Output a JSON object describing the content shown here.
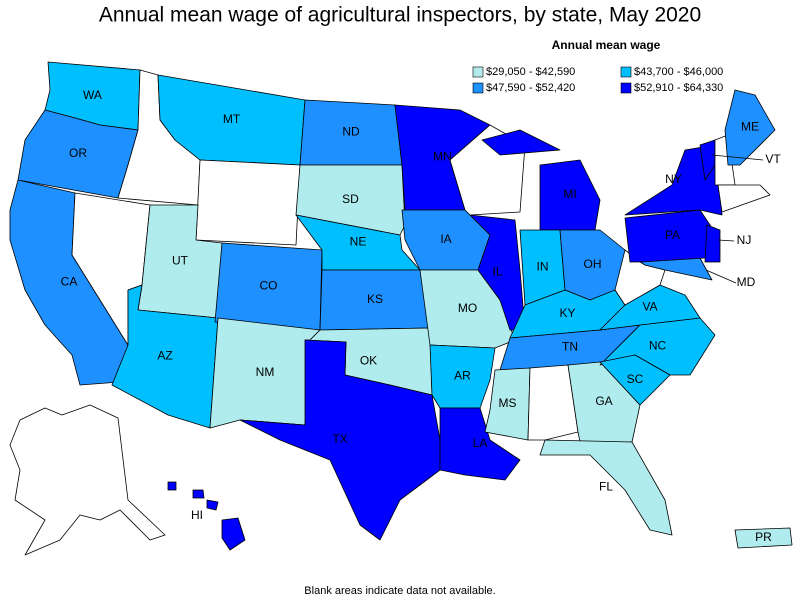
{
  "title": "Annual mean wage of agricultural inspectors, by state, May 2020",
  "legend": {
    "title": "Annual mean wage",
    "items": [
      {
        "label": "$29,050 - $42,590",
        "color": "#b0ecee",
        "states": [
          "UT",
          "SD",
          "NM",
          "OK",
          "MO",
          "MS",
          "GA",
          "FL",
          "PR"
        ]
      },
      {
        "label": "$43,700 - $46,000",
        "color": "#00bfff",
        "states": [
          "WA",
          "MT",
          "NE",
          "AZ",
          "AR",
          "IN",
          "KY",
          "VA",
          "NC",
          "SC"
        ]
      },
      {
        "label": "$47,590 - $52,420",
        "color": "#1e90ff",
        "states": [
          "OR",
          "CA",
          "ND",
          "CO",
          "KS",
          "IA",
          "OH",
          "TN",
          "ME",
          "MD"
        ]
      },
      {
        "label": "$52,910 - $64,330",
        "color": "#0000ff",
        "states": [
          "MN",
          "MI",
          "IL",
          "TX",
          "LA",
          "NY",
          "PA",
          "NJ",
          "VT",
          "HI"
        ]
      }
    ]
  },
  "footnote": "Blank areas indicate data not available."
}
